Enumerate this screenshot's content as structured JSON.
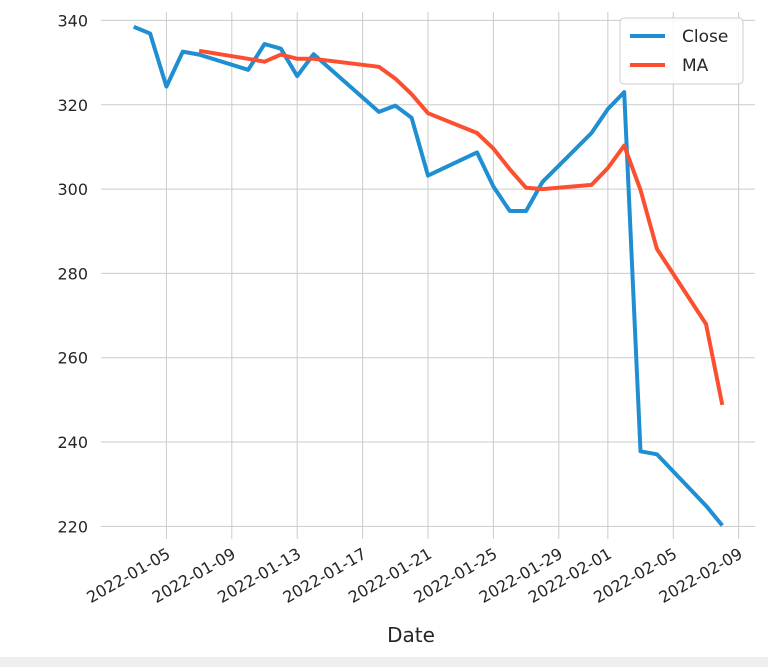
{
  "chart_data": {
    "type": "line",
    "title": "",
    "xlabel": "Date",
    "ylabel": "",
    "x_is_date": true,
    "xlim": [
      "2022-01-01",
      "2022-02-10"
    ],
    "ylim": [
      217,
      342
    ],
    "yticks": [
      220,
      240,
      260,
      280,
      300,
      320,
      340
    ],
    "xticks": [
      "2022-01-05",
      "2022-01-09",
      "2022-01-13",
      "2022-01-17",
      "2022-01-21",
      "2022-01-25",
      "2022-01-29",
      "2022-02-01",
      "2022-02-05",
      "2022-02-09"
    ],
    "grid": true,
    "legend_position": "top-right",
    "series": [
      {
        "name": "Close",
        "color": "#1f8fd2",
        "x": [
          "2022-01-03",
          "2022-01-04",
          "2022-01-05",
          "2022-01-06",
          "2022-01-07",
          "2022-01-10",
          "2022-01-11",
          "2022-01-12",
          "2022-01-13",
          "2022-01-14",
          "2022-01-18",
          "2022-01-19",
          "2022-01-20",
          "2022-01-21",
          "2022-01-24",
          "2022-01-25",
          "2022-01-26",
          "2022-01-27",
          "2022-01-28",
          "2022-01-31",
          "2022-02-01",
          "2022-02-02",
          "2022-02-03",
          "2022-02-04",
          "2022-02-07",
          "2022-02-08"
        ],
        "values": [
          338.5,
          336.9,
          324.3,
          332.6,
          331.9,
          328.3,
          334.4,
          333.3,
          326.8,
          332.0,
          318.3,
          319.8,
          316.9,
          303.2,
          308.7,
          300.6,
          294.8,
          294.8,
          301.7,
          313.3,
          319.0,
          323.0,
          237.8,
          237.1,
          224.9,
          220.2
        ]
      },
      {
        "name": "MA",
        "color": "#fc4f30",
        "x": [
          "2022-01-07",
          "2022-01-10",
          "2022-01-11",
          "2022-01-12",
          "2022-01-13",
          "2022-01-14",
          "2022-01-18",
          "2022-01-19",
          "2022-01-20",
          "2022-01-21",
          "2022-01-24",
          "2022-01-25",
          "2022-01-26",
          "2022-01-27",
          "2022-01-28",
          "2022-01-31",
          "2022-02-01",
          "2022-02-02",
          "2022-02-03",
          "2022-02-04",
          "2022-02-07",
          "2022-02-08"
        ],
        "values": [
          332.8,
          330.9,
          330.2,
          331.9,
          330.9,
          330.9,
          329.0,
          326.2,
          322.5,
          318.0,
          313.3,
          309.6,
          304.7,
          300.3,
          300.0,
          301.0,
          305.0,
          310.3,
          299.8,
          285.8,
          268.0,
          248.8
        ]
      }
    ]
  }
}
